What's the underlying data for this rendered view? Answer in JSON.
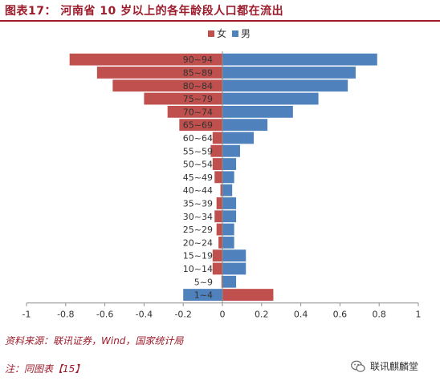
{
  "header": {
    "title": "图表17：  河南省 10 岁以上的各年龄段人口都在流出"
  },
  "chart_data": {
    "type": "bar",
    "orientation": "horizontal",
    "categories": [
      "90~94",
      "85~89",
      "80~84",
      "75~79",
      "70~74",
      "65~69",
      "60~64",
      "55~59",
      "50~54",
      "45~49",
      "40~44",
      "35~39",
      "30~34",
      "25~29",
      "20~24",
      "15~19",
      "10~14",
      "5~9",
      "1~4"
    ],
    "series": [
      {
        "name": "女",
        "color": "#c0504d",
        "values": [
          -0.78,
          -0.64,
          -0.56,
          -0.4,
          -0.28,
          -0.22,
          -0.05,
          -0.06,
          -0.05,
          -0.04,
          -0.01,
          -0.03,
          -0.04,
          -0.03,
          -0.02,
          -0.05,
          -0.05,
          -0.005,
          0.26
        ]
      },
      {
        "name": "男",
        "color": "#4f81bd",
        "values": [
          0.79,
          0.68,
          0.64,
          0.49,
          0.36,
          0.23,
          0.16,
          0.09,
          0.07,
          0.06,
          0.05,
          0.07,
          0.07,
          0.06,
          0.06,
          0.12,
          0.12,
          0.07,
          -0.2
        ]
      }
    ],
    "xlim": [
      -1,
      1
    ],
    "xticks": [
      -1,
      -0.8,
      -0.6,
      -0.4,
      -0.2,
      0,
      0.2,
      0.4,
      0.6,
      0.8,
      1
    ],
    "xtick_labels": [
      "-1",
      "-0.8",
      "-0.6",
      "-0.4",
      "-0.2",
      "0",
      "0.2",
      "0.4",
      "0.6",
      "0.8",
      "1"
    ],
    "legend_position": "top-center",
    "grid": false
  },
  "footer": {
    "source": "资料来源：联讯证券，Wind，国家统计局",
    "note": "注：同图表【15】",
    "watermark": "联讯麒麟堂",
    "watermark_icon": "wechat-icon"
  }
}
